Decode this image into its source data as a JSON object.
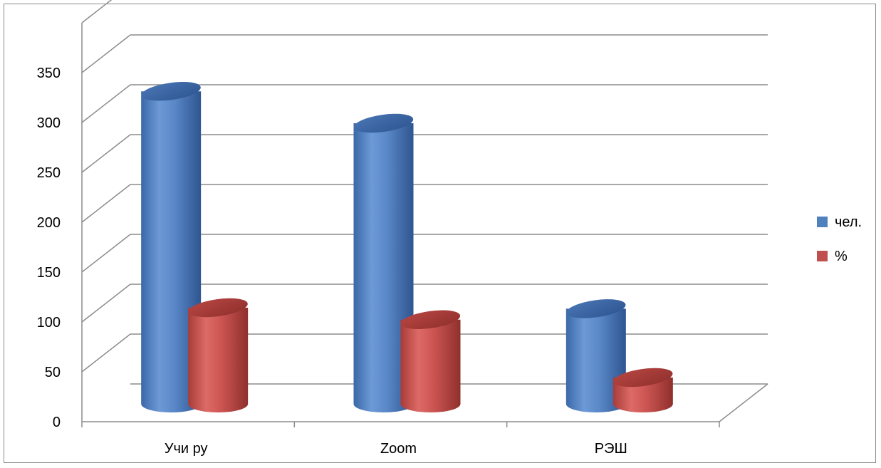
{
  "chart_data": {
    "type": "bar",
    "title": "",
    "xlabel": "",
    "ylabel": "",
    "categories": [
      "Учи ру",
      "Zoom",
      "РЭШ"
    ],
    "series": [
      {
        "name": "чел.",
        "values": [
          322,
          290,
          104
        ],
        "color": "#4f81bd"
      },
      {
        "name": "%",
        "values": [
          105,
          93,
          35
        ],
        "color": "#c0504d"
      }
    ],
    "ylim": [
      0,
      350
    ],
    "yticks": [
      0,
      50,
      100,
      150,
      200,
      250,
      300,
      350
    ],
    "grid": true,
    "three_d": true,
    "legend_position": "right"
  }
}
